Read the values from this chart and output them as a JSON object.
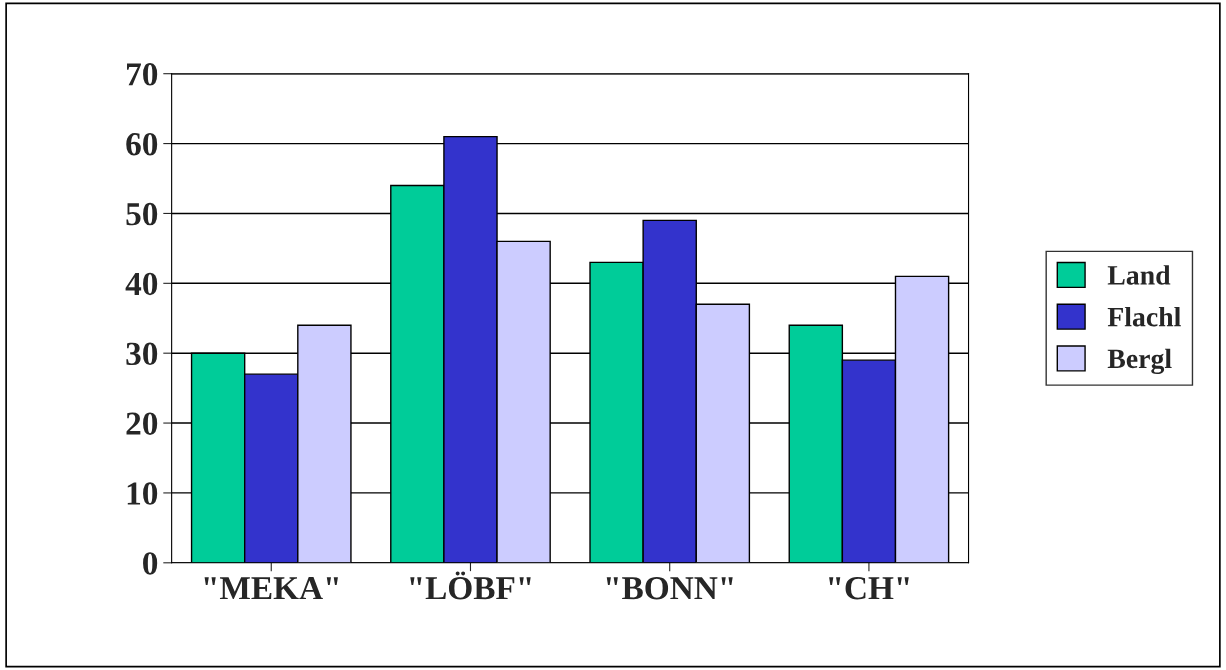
{
  "chart_data": {
    "type": "bar",
    "categories": [
      "\"MEKA\"",
      "\"LÖBF\"",
      "\"BONN\"",
      "\"CH\""
    ],
    "series": [
      {
        "name": "Land",
        "color": "#00cc99",
        "values": [
          30,
          54,
          43,
          34
        ]
      },
      {
        "name": "Flachl",
        "color": "#3333cc",
        "values": [
          27,
          61,
          49,
          29
        ]
      },
      {
        "name": "Bergl",
        "color": "#ccccff",
        "values": [
          34,
          46,
          37,
          41
        ]
      }
    ],
    "ylim": [
      0,
      70
    ],
    "yticks": [
      0,
      10,
      20,
      30,
      40,
      50,
      60,
      70
    ],
    "grid": "y",
    "legend": "right"
  }
}
